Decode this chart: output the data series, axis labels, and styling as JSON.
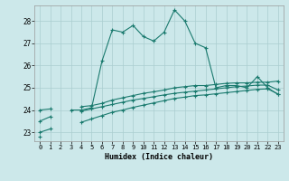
{
  "xlabel": "Humidex (Indice chaleur)",
  "background_color": "#cce8ea",
  "grid_color": "#aacdd0",
  "line_color": "#1a7a6e",
  "ylim": [
    22.6,
    28.7
  ],
  "xlim": [
    -0.5,
    23.5
  ],
  "x": [
    0,
    1,
    2,
    3,
    4,
    5,
    6,
    7,
    8,
    9,
    10,
    11,
    12,
    13,
    14,
    15,
    16,
    17,
    18,
    19,
    20,
    21,
    22,
    23
  ],
  "line1_y": [
    22.8,
    null,
    null,
    24.0,
    24.0,
    24.1,
    26.2,
    27.6,
    27.5,
    27.8,
    27.3,
    27.1,
    27.5,
    28.5,
    28.0,
    27.0,
    26.8,
    25.0,
    25.1,
    25.1,
    25.0,
    25.5,
    25.0,
    24.7
  ],
  "line2_y": [
    24.0,
    24.05,
    null,
    null,
    24.15,
    24.2,
    24.3,
    24.45,
    24.55,
    24.65,
    24.75,
    24.82,
    24.9,
    25.0,
    25.05,
    25.1,
    25.1,
    25.15,
    25.2,
    25.22,
    25.22,
    25.25,
    25.25,
    25.3
  ],
  "line3_y": [
    23.5,
    23.7,
    null,
    null,
    23.95,
    24.05,
    24.15,
    24.25,
    24.35,
    24.45,
    24.52,
    24.6,
    24.68,
    24.75,
    24.8,
    24.85,
    24.9,
    24.95,
    25.0,
    25.05,
    25.08,
    25.12,
    25.12,
    24.9
  ],
  "line4_y": [
    23.0,
    23.15,
    null,
    null,
    23.45,
    23.6,
    23.75,
    23.9,
    24.0,
    24.12,
    24.22,
    24.32,
    24.42,
    24.52,
    24.58,
    24.65,
    24.68,
    24.73,
    24.78,
    24.83,
    24.88,
    24.93,
    24.95,
    24.72
  ],
  "yticks": [
    23,
    24,
    25,
    26,
    27,
    28
  ],
  "xticks": [
    0,
    1,
    2,
    3,
    4,
    5,
    6,
    7,
    8,
    9,
    10,
    11,
    12,
    13,
    14,
    15,
    16,
    17,
    18,
    19,
    20,
    21,
    22,
    23
  ]
}
